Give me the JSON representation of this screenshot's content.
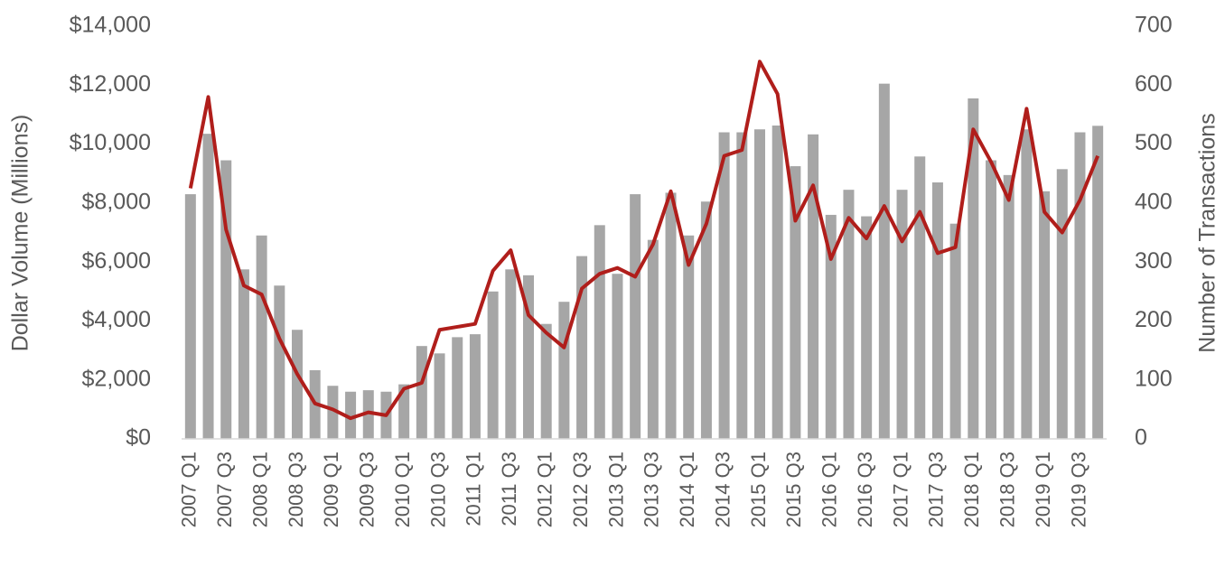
{
  "chart_data": {
    "type": "bar-line",
    "y_label": "Dollar Volume (Millions)",
    "y2_label": "Number of Transactions",
    "categories": [
      "2007 Q1",
      null,
      "2007 Q3",
      null,
      "2008 Q1",
      null,
      "2008 Q3",
      null,
      "2009 Q1",
      null,
      "2009 Q3",
      null,
      "2010 Q1",
      null,
      "2010 Q3",
      null,
      "2011 Q1",
      null,
      "2011 Q3",
      null,
      "2012 Q1",
      null,
      "2012 Q3",
      null,
      "2013 Q1",
      null,
      "2013 Q3",
      null,
      "2014 Q1",
      null,
      "2014 Q3",
      null,
      "2015 Q1",
      null,
      "2015 Q3",
      null,
      "2016 Q1",
      null,
      "2016 Q3",
      null,
      "2017 Q1",
      null,
      "2017 Q3",
      null,
      "2018 Q1",
      null,
      "2018 Q3",
      null,
      "2019 Q1",
      null,
      "2019 Q3",
      null
    ],
    "series": [
      {
        "type": "bar",
        "axis": "y",
        "color": "#a6a6a6",
        "values": [
          8300,
          10350,
          9450,
          5750,
          6900,
          5200,
          3700,
          2330,
          1800,
          1600,
          1650,
          1600,
          1850,
          3150,
          2900,
          3450,
          3550,
          5000,
          5750,
          5550,
          3900,
          4650,
          6200,
          7250,
          5600,
          8300,
          6750,
          8350,
          6900,
          8050,
          10400,
          10400,
          10500,
          10630,
          9250,
          10330,
          7600,
          8450,
          7550,
          12050,
          8450,
          9580,
          8700,
          7300,
          11550,
          9450,
          8950,
          10500,
          8400,
          9150,
          10400,
          10620
        ]
      },
      {
        "type": "line",
        "axis": "y2",
        "color": "#b01e1b",
        "values": [
          425,
          580,
          355,
          260,
          245,
          170,
          110,
          60,
          50,
          35,
          45,
          40,
          85,
          95,
          185,
          190,
          195,
          285,
          320,
          210,
          180,
          155,
          255,
          280,
          290,
          275,
          330,
          420,
          295,
          365,
          480,
          490,
          640,
          585,
          370,
          430,
          305,
          375,
          340,
          395,
          335,
          385,
          315,
          325,
          525,
          470,
          405,
          560,
          385,
          350,
          405,
          480
        ]
      }
    ],
    "ylim": [
      0,
      14000
    ],
    "yticks": [
      {
        "value": 0,
        "label": "$0"
      },
      {
        "value": 2000,
        "label": "$2,000"
      },
      {
        "value": 4000,
        "label": "$4,000"
      },
      {
        "value": 6000,
        "label": "$6,000"
      },
      {
        "value": 8000,
        "label": "$8,000"
      },
      {
        "value": 10000,
        "label": "$10,000"
      },
      {
        "value": 12000,
        "label": "$12,000"
      },
      {
        "value": 14000,
        "label": "$14,000"
      }
    ],
    "y2lim": [
      0,
      700
    ],
    "y2ticks": [
      0,
      100,
      200,
      300,
      400,
      500,
      600,
      700
    ]
  }
}
